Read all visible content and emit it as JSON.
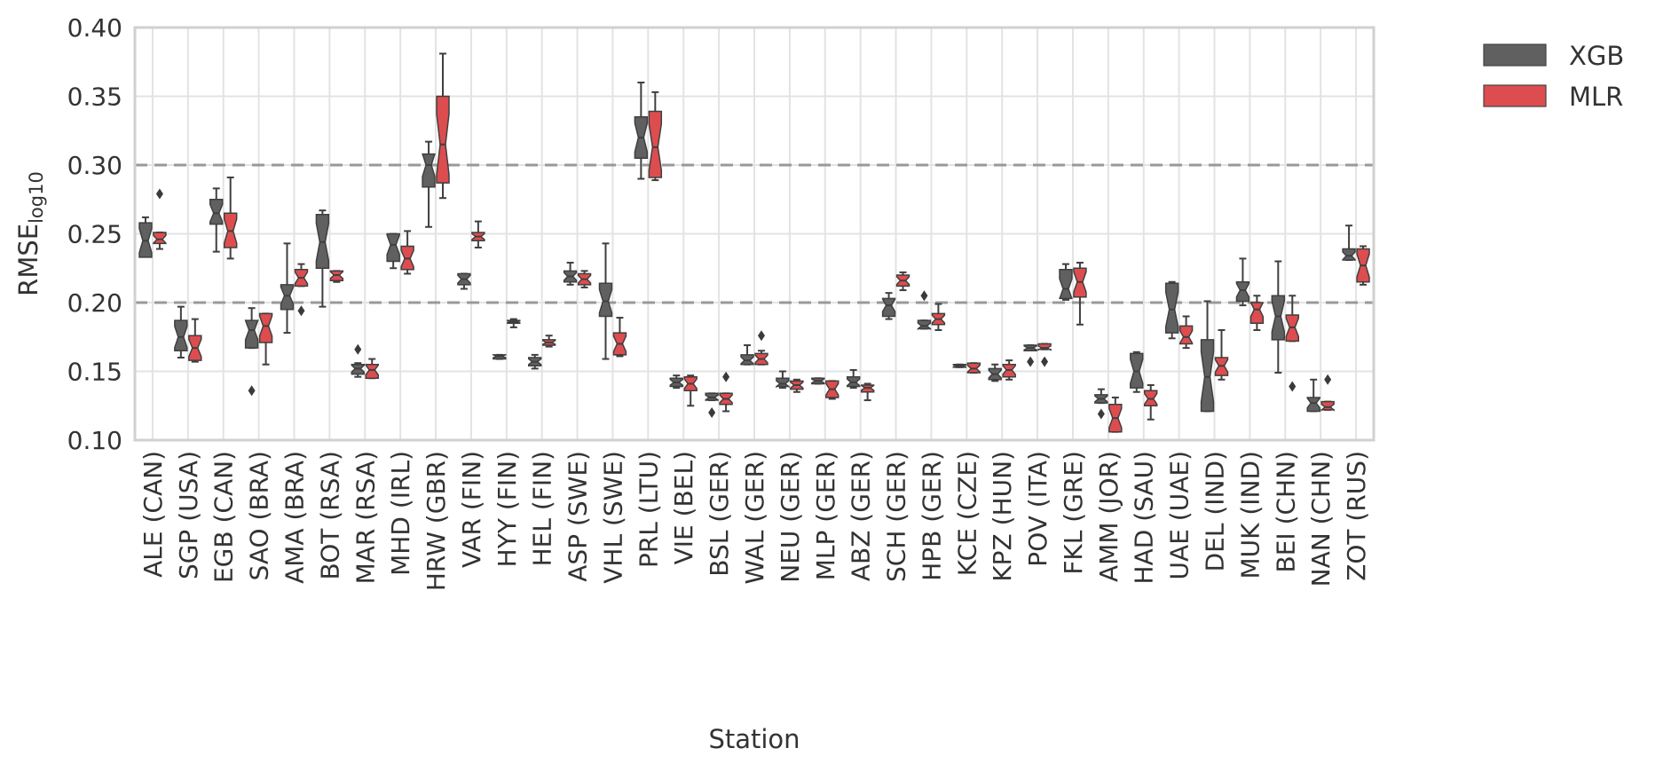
{
  "chart_data": {
    "type": "boxplot",
    "title": "",
    "xlabel": "Station",
    "ylabel_main": "RMSE",
    "ylabel_sub": "log10",
    "ylim": [
      0.1,
      0.4
    ],
    "yticks": [
      "0.10",
      "0.15",
      "0.20",
      "0.25",
      "0.30",
      "0.35",
      "0.40"
    ],
    "ytick_values": [
      0.1,
      0.15,
      0.2,
      0.25,
      0.3,
      0.35,
      0.4
    ],
    "grid": true,
    "reference_lines": [
      0.2,
      0.3
    ],
    "legend_position": "top-right",
    "notched": true,
    "series": [
      {
        "name": "XGB",
        "color": "#606060"
      },
      {
        "name": "MLR",
        "color": "#dd4d4f"
      }
    ],
    "categories": [
      "ALE (CAN)",
      "SGP (USA)",
      "EGB (CAN)",
      "SAO (BRA)",
      "AMA (BRA)",
      "BOT (RSA)",
      "MAR (RSA)",
      "MHD (IRL)",
      "HRW (GBR)",
      "VAR (FIN)",
      "HYY (FIN)",
      "HEL (FIN)",
      "ASP (SWE)",
      "VHL (SWE)",
      "PRL (LTU)",
      "VIE (BEL)",
      "BSL (GER)",
      "WAL (GER)",
      "NEU (GER)",
      "MLP (GER)",
      "ABZ (GER)",
      "SCH (GER)",
      "HPB (GER)",
      "KCE (CZE)",
      "KPZ (HUN)",
      "POV (ITA)",
      "FKL (GRE)",
      "AMM (JOR)",
      "HAD (SAU)",
      "UAE (UAE)",
      "DEL (IND)",
      "MUK (IND)",
      "BEI (CHN)",
      "NAN (CHN)",
      "ZOT (RUS)"
    ],
    "boxes": {
      "XGB": [
        {
          "wlo": 0.234,
          "q1": 0.233,
          "med": 0.245,
          "q3": 0.258,
          "whi": 0.262,
          "out": []
        },
        {
          "wlo": 0.16,
          "q1": 0.165,
          "med": 0.175,
          "q3": 0.187,
          "whi": 0.197,
          "out": []
        },
        {
          "wlo": 0.237,
          "q1": 0.257,
          "med": 0.265,
          "q3": 0.275,
          "whi": 0.283,
          "out": []
        },
        {
          "wlo": 0.167,
          "q1": 0.167,
          "med": 0.18,
          "q3": 0.187,
          "whi": 0.196,
          "out": [
            0.136
          ]
        },
        {
          "wlo": 0.178,
          "q1": 0.195,
          "med": 0.205,
          "q3": 0.213,
          "whi": 0.243,
          "out": []
        },
        {
          "wlo": 0.197,
          "q1": 0.225,
          "med": 0.244,
          "q3": 0.264,
          "whi": 0.267,
          "out": []
        },
        {
          "wlo": 0.146,
          "q1": 0.148,
          "med": 0.152,
          "q3": 0.155,
          "whi": 0.156,
          "out": [
            0.166
          ]
        },
        {
          "wlo": 0.225,
          "q1": 0.23,
          "med": 0.242,
          "q3": 0.25,
          "whi": 0.25,
          "out": []
        },
        {
          "wlo": 0.255,
          "q1": 0.284,
          "med": 0.3,
          "q3": 0.308,
          "whi": 0.317,
          "out": []
        },
        {
          "wlo": 0.21,
          "q1": 0.213,
          "med": 0.217,
          "q3": 0.221,
          "whi": 0.221,
          "out": []
        },
        {
          "wlo": 0.159,
          "q1": 0.159,
          "med": 0.161,
          "q3": 0.162,
          "whi": 0.162,
          "out": []
        },
        {
          "wlo": 0.152,
          "q1": 0.154,
          "med": 0.157,
          "q3": 0.16,
          "whi": 0.162,
          "out": []
        },
        {
          "wlo": 0.213,
          "q1": 0.215,
          "med": 0.219,
          "q3": 0.223,
          "whi": 0.229,
          "out": []
        },
        {
          "wlo": 0.159,
          "q1": 0.19,
          "med": 0.201,
          "q3": 0.214,
          "whi": 0.243,
          "out": []
        },
        {
          "wlo": 0.29,
          "q1": 0.305,
          "med": 0.32,
          "q3": 0.335,
          "whi": 0.36,
          "out": []
        },
        {
          "wlo": 0.138,
          "q1": 0.139,
          "med": 0.142,
          "q3": 0.145,
          "whi": 0.147,
          "out": []
        },
        {
          "wlo": 0.129,
          "q1": 0.129,
          "med": 0.131,
          "q3": 0.134,
          "whi": 0.134,
          "out": [
            0.12
          ]
        },
        {
          "wlo": 0.155,
          "q1": 0.155,
          "med": 0.158,
          "q3": 0.162,
          "whi": 0.169,
          "out": []
        },
        {
          "wlo": 0.138,
          "q1": 0.139,
          "med": 0.141,
          "q3": 0.145,
          "whi": 0.15,
          "out": []
        },
        {
          "wlo": 0.141,
          "q1": 0.141,
          "med": 0.143,
          "q3": 0.145,
          "whi": 0.145,
          "out": []
        },
        {
          "wlo": 0.138,
          "q1": 0.139,
          "med": 0.142,
          "q3": 0.146,
          "whi": 0.151,
          "out": []
        },
        {
          "wlo": 0.188,
          "q1": 0.19,
          "med": 0.198,
          "q3": 0.203,
          "whi": 0.207,
          "out": []
        },
        {
          "wlo": 0.181,
          "q1": 0.181,
          "med": 0.183,
          "q3": 0.187,
          "whi": 0.187,
          "out": [
            0.205
          ]
        },
        {
          "wlo": 0.153,
          "q1": 0.153,
          "med": 0.154,
          "q3": 0.155,
          "whi": 0.155,
          "out": []
        },
        {
          "wlo": 0.143,
          "q1": 0.144,
          "med": 0.148,
          "q3": 0.152,
          "whi": 0.155,
          "out": []
        },
        {
          "wlo": 0.166,
          "q1": 0.165,
          "med": 0.167,
          "q3": 0.169,
          "whi": 0.169,
          "out": [
            0.157
          ]
        },
        {
          "wlo": 0.202,
          "q1": 0.203,
          "med": 0.21,
          "q3": 0.224,
          "whi": 0.228,
          "out": []
        },
        {
          "wlo": 0.127,
          "q1": 0.127,
          "med": 0.13,
          "q3": 0.133,
          "whi": 0.137,
          "out": [
            0.119
          ]
        },
        {
          "wlo": 0.135,
          "q1": 0.138,
          "med": 0.15,
          "q3": 0.163,
          "whi": 0.164,
          "out": []
        },
        {
          "wlo": 0.174,
          "q1": 0.178,
          "med": 0.195,
          "q3": 0.214,
          "whi": 0.215,
          "out": []
        },
        {
          "wlo": 0.121,
          "q1": 0.121,
          "med": 0.146,
          "q3": 0.173,
          "whi": 0.201,
          "out": []
        },
        {
          "wlo": 0.198,
          "q1": 0.201,
          "med": 0.209,
          "q3": 0.215,
          "whi": 0.232,
          "out": []
        },
        {
          "wlo": 0.149,
          "q1": 0.173,
          "med": 0.19,
          "q3": 0.205,
          "whi": 0.23,
          "out": []
        },
        {
          "wlo": 0.121,
          "q1": 0.121,
          "med": 0.127,
          "q3": 0.131,
          "whi": 0.144,
          "out": []
        },
        {
          "wlo": 0.231,
          "q1": 0.231,
          "med": 0.234,
          "q3": 0.239,
          "whi": 0.256,
          "out": []
        }
      ],
      "MLR": [
        {
          "wlo": 0.239,
          "q1": 0.243,
          "med": 0.246,
          "q3": 0.251,
          "whi": 0.251,
          "out": [
            0.279
          ]
        },
        {
          "wlo": 0.157,
          "q1": 0.158,
          "med": 0.167,
          "q3": 0.176,
          "whi": 0.188,
          "out": []
        },
        {
          "wlo": 0.232,
          "q1": 0.24,
          "med": 0.252,
          "q3": 0.265,
          "whi": 0.291,
          "out": []
        },
        {
          "wlo": 0.155,
          "q1": 0.171,
          "med": 0.183,
          "q3": 0.192,
          "whi": 0.192,
          "out": []
        },
        {
          "wlo": 0.212,
          "q1": 0.212,
          "med": 0.218,
          "q3": 0.224,
          "whi": 0.228,
          "out": [
            0.194
          ]
        },
        {
          "wlo": 0.215,
          "q1": 0.216,
          "med": 0.22,
          "q3": 0.223,
          "whi": 0.223,
          "out": []
        },
        {
          "wlo": 0.145,
          "q1": 0.145,
          "med": 0.151,
          "q3": 0.155,
          "whi": 0.159,
          "out": []
        },
        {
          "wlo": 0.221,
          "q1": 0.224,
          "med": 0.232,
          "q3": 0.241,
          "whi": 0.252,
          "out": []
        },
        {
          "wlo": 0.276,
          "q1": 0.287,
          "med": 0.315,
          "q3": 0.35,
          "whi": 0.381,
          "out": []
        },
        {
          "wlo": 0.24,
          "q1": 0.245,
          "med": 0.248,
          "q3": 0.251,
          "whi": 0.259,
          "out": []
        },
        {
          "wlo": 0.182,
          "q1": 0.185,
          "med": 0.186,
          "q3": 0.187,
          "whi": 0.188,
          "out": []
        },
        {
          "wlo": 0.168,
          "q1": 0.169,
          "med": 0.171,
          "q3": 0.173,
          "whi": 0.176,
          "out": []
        },
        {
          "wlo": 0.211,
          "q1": 0.213,
          "med": 0.217,
          "q3": 0.221,
          "whi": 0.223,
          "out": []
        },
        {
          "wlo": 0.161,
          "q1": 0.162,
          "med": 0.17,
          "q3": 0.178,
          "whi": 0.189,
          "out": []
        },
        {
          "wlo": 0.289,
          "q1": 0.291,
          "med": 0.313,
          "q3": 0.339,
          "whi": 0.353,
          "out": []
        },
        {
          "wlo": 0.125,
          "q1": 0.136,
          "med": 0.141,
          "q3": 0.146,
          "whi": 0.147,
          "out": []
        },
        {
          "wlo": 0.121,
          "q1": 0.126,
          "med": 0.13,
          "q3": 0.134,
          "whi": 0.134,
          "out": [
            0.146
          ]
        },
        {
          "wlo": 0.155,
          "q1": 0.155,
          "med": 0.159,
          "q3": 0.163,
          "whi": 0.165,
          "out": [
            0.176
          ]
        },
        {
          "wlo": 0.135,
          "q1": 0.137,
          "med": 0.14,
          "q3": 0.143,
          "whi": 0.144,
          "out": []
        },
        {
          "wlo": 0.13,
          "q1": 0.131,
          "med": 0.137,
          "q3": 0.143,
          "whi": 0.143,
          "out": []
        },
        {
          "wlo": 0.129,
          "q1": 0.135,
          "med": 0.138,
          "q3": 0.14,
          "whi": 0.141,
          "out": []
        },
        {
          "wlo": 0.209,
          "q1": 0.212,
          "med": 0.216,
          "q3": 0.22,
          "whi": 0.222,
          "out": []
        },
        {
          "wlo": 0.18,
          "q1": 0.184,
          "med": 0.188,
          "q3": 0.192,
          "whi": 0.199,
          "out": []
        },
        {
          "wlo": 0.149,
          "q1": 0.149,
          "med": 0.152,
          "q3": 0.156,
          "whi": 0.156,
          "out": []
        },
        {
          "wlo": 0.144,
          "q1": 0.146,
          "med": 0.151,
          "q3": 0.155,
          "whi": 0.158,
          "out": []
        },
        {
          "wlo": 0.166,
          "q1": 0.166,
          "med": 0.167,
          "q3": 0.17,
          "whi": 0.17,
          "out": [
            0.157
          ]
        },
        {
          "wlo": 0.184,
          "q1": 0.204,
          "med": 0.215,
          "q3": 0.225,
          "whi": 0.229,
          "out": []
        },
        {
          "wlo": 0.106,
          "q1": 0.106,
          "med": 0.116,
          "q3": 0.126,
          "whi": 0.131,
          "out": []
        },
        {
          "wlo": 0.115,
          "q1": 0.125,
          "med": 0.13,
          "q3": 0.136,
          "whi": 0.14,
          "out": []
        },
        {
          "wlo": 0.167,
          "q1": 0.17,
          "med": 0.175,
          "q3": 0.183,
          "whi": 0.19,
          "out": []
        },
        {
          "wlo": 0.144,
          "q1": 0.147,
          "med": 0.154,
          "q3": 0.16,
          "whi": 0.18,
          "out": []
        },
        {
          "wlo": 0.18,
          "q1": 0.185,
          "med": 0.195,
          "q3": 0.2,
          "whi": 0.205,
          "out": []
        },
        {
          "wlo": 0.172,
          "q1": 0.172,
          "med": 0.182,
          "q3": 0.191,
          "whi": 0.205,
          "out": [
            0.139
          ]
        },
        {
          "wlo": 0.122,
          "q1": 0.122,
          "med": 0.124,
          "q3": 0.128,
          "whi": 0.128,
          "out": [
            0.144
          ]
        },
        {
          "wlo": 0.213,
          "q1": 0.215,
          "med": 0.227,
          "q3": 0.239,
          "whi": 0.241,
          "out": []
        }
      ]
    }
  }
}
